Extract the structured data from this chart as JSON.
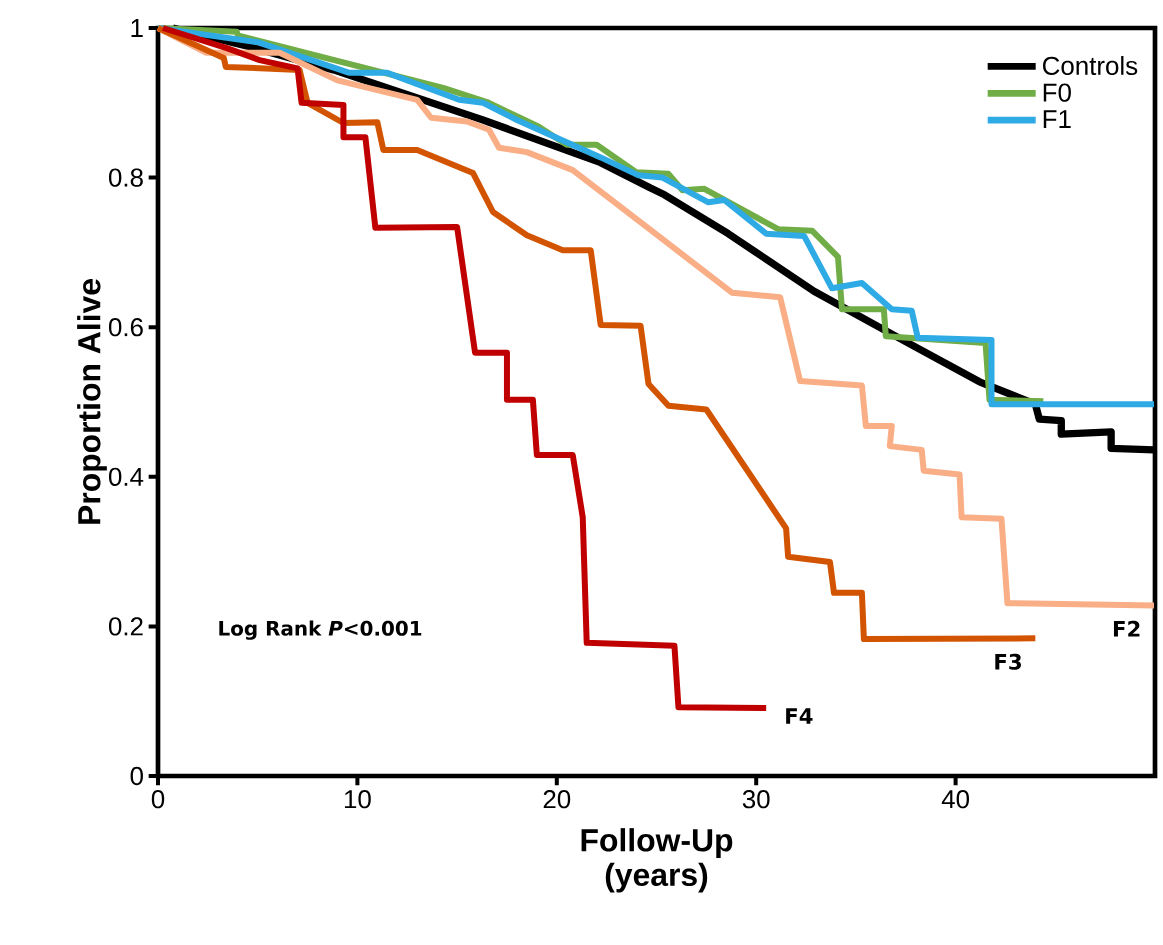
{
  "chart_data": {
    "type": "line",
    "xlabel": "Follow-Up (years)",
    "ylabel": "Proportion Alive",
    "xlim": [
      0,
      50
    ],
    "ylim": [
      0,
      1
    ],
    "xticks": [
      0,
      10,
      20,
      30,
      40
    ],
    "yticks": [
      0,
      0.2,
      0.4,
      0.6,
      0.8,
      1
    ],
    "legend": "top right",
    "grid": false,
    "marker": "none",
    "line_style": "solid",
    "annotations": [
      "Log Rank *P*<0.001"
    ],
    "series": [
      {
        "name": "Controls",
        "color": "#000000",
        "x": [
          0.75,
          4.6,
          8.8,
          16.3,
          22.2,
          24.7,
          25.4,
          28.6,
          32.9,
          37.4,
          41.2,
          44.0,
          44.2,
          45.3,
          45.3,
          47.8,
          47.8,
          49.95
        ],
        "values": [
          1.0,
          0.975,
          0.944,
          0.877,
          0.82,
          0.786,
          0.777,
          0.725,
          0.648,
          0.582,
          0.527,
          0.497,
          0.477,
          0.475,
          0.457,
          0.46,
          0.438,
          0.436
        ]
      },
      {
        "name": "F0",
        "color": "#70ad47",
        "x": [
          0,
          3.95,
          4.0,
          14.3,
          16.5,
          19.1,
          20.5,
          22.0,
          24.0,
          25.6,
          26.3,
          27.4,
          31.1,
          32.8,
          34.1,
          34.3,
          36.4,
          36.5,
          41.5,
          41.7,
          44.4
        ],
        "values": [
          1.0,
          0.995,
          0.99,
          0.92,
          0.901,
          0.868,
          0.844,
          0.844,
          0.807,
          0.805,
          0.783,
          0.785,
          0.731,
          0.729,
          0.694,
          0.624,
          0.624,
          0.588,
          0.579,
          0.503,
          0.501
        ]
      },
      {
        "name": "F1",
        "color": "#2eaae4",
        "x": [
          0,
          5.0,
          9.6,
          11.5,
          15.1,
          16.3,
          18.0,
          22.2,
          24.1,
          25.3,
          27.6,
          28.4,
          30.5,
          32.4,
          33.8,
          35.3,
          36.8,
          37.8,
          38.1,
          41.8,
          41.8,
          49.95
        ],
        "values": [
          1.0,
          0.981,
          0.94,
          0.94,
          0.904,
          0.9,
          0.877,
          0.827,
          0.803,
          0.8,
          0.767,
          0.77,
          0.725,
          0.722,
          0.652,
          0.659,
          0.624,
          0.622,
          0.586,
          0.583,
          0.497,
          0.497
        ]
      },
      {
        "name": "F2",
        "color": "#f9ae86",
        "x": [
          0,
          2.4,
          3.3,
          6.1,
          9.0,
          13.0,
          13.7,
          15.5,
          16.6,
          17.1,
          18.5,
          20.8,
          24.7,
          28.8,
          31.2,
          32.2,
          35.3,
          35.5,
          36.8,
          36.7,
          38.3,
          38.4,
          40.2,
          40.3,
          42.3,
          42.6,
          49.95
        ],
        "values": [
          1.0,
          0.967,
          0.967,
          0.967,
          0.93,
          0.904,
          0.88,
          0.875,
          0.864,
          0.84,
          0.834,
          0.81,
          0.73,
          0.646,
          0.64,
          0.528,
          0.522,
          0.468,
          0.468,
          0.441,
          0.436,
          0.408,
          0.403,
          0.346,
          0.344,
          0.231,
          0.228
        ]
      },
      {
        "name": "F3",
        "color": "#d35400",
        "x": [
          0,
          3.3,
          3.4,
          7.1,
          7.5,
          9.3,
          11.0,
          11.3,
          13.0,
          15.8,
          16.8,
          18.5,
          20.3,
          21.7,
          22.2,
          24.2,
          24.6,
          25.6,
          27.5,
          31.5,
          31.6,
          33.7,
          33.9,
          35.3,
          35.4,
          44.0
        ],
        "values": [
          1.0,
          0.96,
          0.948,
          0.944,
          0.9,
          0.873,
          0.874,
          0.837,
          0.837,
          0.806,
          0.754,
          0.723,
          0.703,
          0.703,
          0.603,
          0.602,
          0.524,
          0.495,
          0.49,
          0.331,
          0.293,
          0.286,
          0.245,
          0.245,
          0.183,
          0.184
        ]
      },
      {
        "name": "F4",
        "color": "#c00000",
        "x": [
          0.25,
          3.45,
          5.1,
          7.0,
          7.2,
          9.3,
          9.3,
          10.4,
          10.9,
          15.0,
          15.9,
          17.5,
          17.5,
          18.8,
          19.0,
          20.8,
          21.3,
          21.5,
          25.9,
          26.1,
          30.5
        ],
        "values": [
          1.0,
          0.973,
          0.957,
          0.946,
          0.9,
          0.897,
          0.854,
          0.854,
          0.733,
          0.734,
          0.566,
          0.566,
          0.503,
          0.503,
          0.429,
          0.429,
          0.346,
          0.178,
          0.174,
          0.092,
          0.091
        ]
      }
    ]
  }
}
